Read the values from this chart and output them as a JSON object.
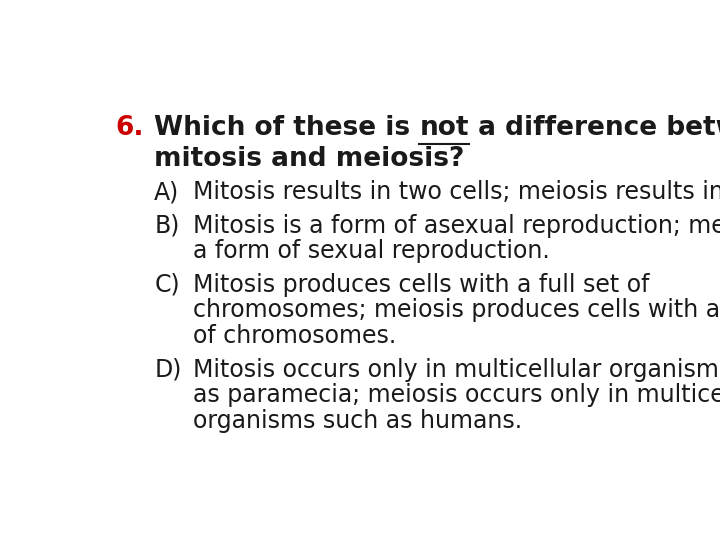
{
  "background_color": "#ffffff",
  "question_number_color": "#cc0000",
  "text_color": "#1a1a1a",
  "question_number": "6.",
  "question_line1_before_not": "Which of these is ",
  "question_line1_not": "not",
  "question_line1_after_not": " a difference between",
  "question_line2": "mitosis and meiosis?",
  "answers": [
    {
      "letter": "A)",
      "lines": [
        "Mitosis results in two cells; meiosis results in four."
      ]
    },
    {
      "letter": "B)",
      "lines": [
        "Mitosis is a form of asexual reproduction; meiosis is",
        "a form of sexual reproduction."
      ]
    },
    {
      "letter": "C)",
      "lines": [
        "Mitosis produces cells with a full set of",
        "chromosomes; meiosis produces cells with a half set",
        "of chromosomes."
      ]
    },
    {
      "letter": "D)",
      "lines": [
        "Mitosis occurs only in multicellular organisms such",
        "as paramecia; meiosis occurs only in multicellular",
        "organisms such as humans."
      ]
    }
  ],
  "question_fontsize": 19,
  "answer_fontsize": 17,
  "figsize": [
    7.2,
    5.4
  ],
  "dpi": 100
}
